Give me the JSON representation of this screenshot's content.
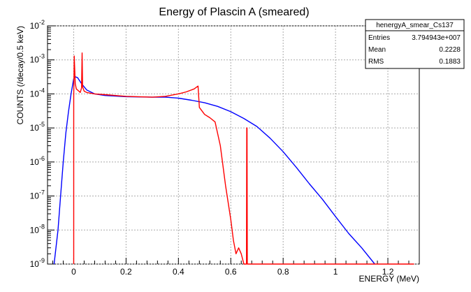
{
  "chart_data": {
    "type": "line",
    "title": "Energy of Plascin A (smeared)",
    "xlabel": "ENERGY (MeV)",
    "ylabel": "COUNTS (/decay/0.5 keV)",
    "x_scale": "linear",
    "y_scale": "log",
    "xlim": [
      -0.1,
      1.32
    ],
    "ylim": [
      1e-09,
      0.01
    ],
    "grid": true,
    "x_ticks": [
      0,
      0.2,
      0.4,
      0.6,
      0.8,
      1,
      1.2
    ],
    "x_tick_labels": [
      "0",
      "0.2",
      "0.4",
      "0.6",
      "0.8",
      "1",
      "1.2"
    ],
    "y_ticks": [
      1e-09,
      1e-08,
      1e-07,
      1e-06,
      1e-05,
      0.0001,
      0.001,
      0.01
    ],
    "y_tick_labels": [
      "10<sup>-9</sup>",
      "10<sup>-8</sup>",
      "10<sup>-7</sup>",
      "10<sup>-6</sup>",
      "10<sup>-5</sup>",
      "10<sup>-4</sup>",
      "10<sup>-3</sup>",
      "10<sup>-2</sup>"
    ],
    "stats_box": {
      "name": "henergyA_smear_Cs137",
      "rows": [
        {
          "label": "Entries",
          "value": "3.794943e+007"
        },
        {
          "label": "Mean",
          "value": "0.2228"
        },
        {
          "label": "RMS",
          "value": "0.1883"
        }
      ]
    },
    "series": [
      {
        "color": "#0000ff",
        "x": [
          -0.075,
          -0.06,
          -0.05,
          -0.04,
          -0.03,
          -0.02,
          -0.01,
          0.0,
          0.005,
          0.015,
          0.03,
          0.05,
          0.08,
          0.12,
          0.2,
          0.3,
          0.35,
          0.4,
          0.45,
          0.5,
          0.55,
          0.6,
          0.65,
          0.7,
          0.75,
          0.8,
          0.85,
          0.9,
          0.95,
          1.0,
          1.05,
          1.1,
          1.15
        ],
        "y": [
          1e-09,
          1e-08,
          1e-07,
          1e-06,
          7e-06,
          3e-05,
          0.0001,
          0.00028,
          0.00032,
          0.0003,
          0.0002,
          0.00013,
          0.0001,
          9e-05,
          8.3e-05,
          8e-05,
          8e-05,
          7.5e-05,
          6.5e-05,
          5.5e-05,
          4.3e-05,
          3e-05,
          1.9e-05,
          1.1e-05,
          5e-06,
          2e-06,
          7e-07,
          2.3e-07,
          8e-08,
          2.5e-08,
          8e-09,
          3e-09,
          1e-09
        ]
      },
      {
        "color": "#ff0000",
        "x": [
          0.0,
          0.0,
          0.002,
          0.006,
          0.01,
          0.02,
          0.025,
          0.03,
          0.032,
          0.034,
          0.04,
          0.05,
          0.08,
          0.12,
          0.2,
          0.3,
          0.35,
          0.4,
          0.43,
          0.46,
          0.475,
          0.48,
          0.5,
          0.52,
          0.54,
          0.56,
          0.58,
          0.6,
          0.61,
          0.62,
          0.63,
          0.64,
          0.65,
          0.66,
          0.661,
          0.662,
          0.663,
          0.67,
          0.7,
          0.9,
          1.1,
          1.3
        ],
        "y": [
          1e-09,
          8e-05,
          0.0013,
          0.0002,
          0.00014,
          0.00012,
          0.00011,
          0.00015,
          0.0016,
          0.00016,
          0.00012,
          0.00011,
          0.0001,
          9.5e-05,
          8.5e-05,
          8e-05,
          8.5e-05,
          0.0001,
          0.000115,
          0.00014,
          0.00017,
          4e-05,
          2.5e-05,
          2e-05,
          1.5e-05,
          3e-06,
          2e-07,
          2e-08,
          5e-09,
          2e-09,
          3e-09,
          2e-09,
          1e-09,
          1e-09,
          1e-05,
          1e-05,
          1e-09,
          1e-09,
          1e-09,
          1e-09,
          1e-09,
          1e-09
        ]
      }
    ]
  }
}
